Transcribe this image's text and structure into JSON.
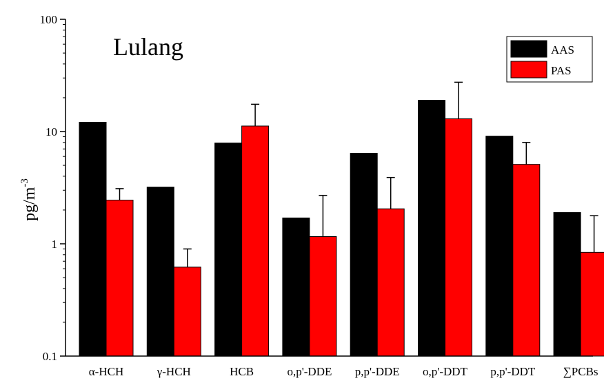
{
  "chart_data": {
    "type": "bar",
    "title": "Lulang",
    "ylabel": "pg/m",
    "ylabel_superscript": "-3",
    "yscale": "log",
    "ylim": [
      0.1,
      100
    ],
    "yticks": [
      {
        "value": 0.1,
        "label": "0.1"
      },
      {
        "value": 1,
        "label": "1"
      },
      {
        "value": 10,
        "label": "10"
      },
      {
        "value": 100,
        "label": "100"
      }
    ],
    "categories": [
      "α-HCH",
      "γ-HCH",
      "HCB",
      "o,p'-DDE",
      "p,p'-DDE",
      "o,p'-DDT",
      "p,p'-DDT",
      "∑PCBs"
    ],
    "series": [
      {
        "name": "AAS",
        "color": "#000000",
        "values": [
          12.1,
          3.2,
          7.9,
          1.7,
          6.4,
          19.0,
          9.1,
          1.9
        ],
        "errors": [
          null,
          null,
          null,
          null,
          null,
          null,
          null,
          null
        ]
      },
      {
        "name": "PAS",
        "color": "#ff0000",
        "values": [
          2.45,
          0.62,
          11.2,
          1.16,
          2.05,
          13.0,
          5.1,
          0.84
        ],
        "errors": [
          3.1,
          0.9,
          17.5,
          2.7,
          3.9,
          27.5,
          8.0,
          1.78
        ]
      }
    ],
    "legend_position": "top-right",
    "grid": false
  }
}
